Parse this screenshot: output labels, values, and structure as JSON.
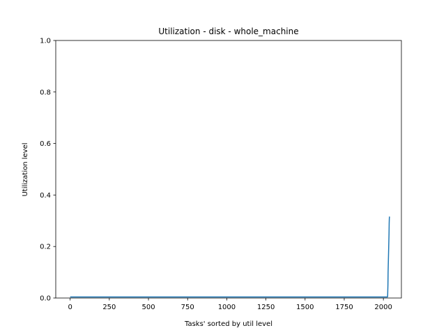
{
  "chart_data": {
    "type": "line",
    "title": "Utilization - disk - whole_machine",
    "xlabel": "Tasks' sorted by util level",
    "ylabel": "Utilization level",
    "xlim": [
      -92,
      2115
    ],
    "ylim": [
      0.0,
      1.0
    ],
    "x_ticks": [
      0,
      250,
      500,
      750,
      1000,
      1250,
      1500,
      1750,
      2000
    ],
    "y_ticks": [
      0.0,
      0.2,
      0.4,
      0.6,
      0.8,
      1.0
    ],
    "x_tick_labels": [
      "0",
      "250",
      "500",
      "750",
      "1000",
      "1250",
      "1500",
      "1750",
      "2000"
    ],
    "y_tick_labels": [
      "0.0",
      "0.2",
      "0.4",
      "0.6",
      "0.8",
      "1.0"
    ],
    "grid": false,
    "series": [
      {
        "color": "#1f77b4",
        "x": [
          0,
          500,
          1000,
          1500,
          2000,
          2025,
          2027,
          2029,
          2030,
          2032,
          2034,
          2036,
          2037,
          2038,
          2039,
          2040
        ],
        "y": [
          0.004,
          0.004,
          0.004,
          0.004,
          0.004,
          0.004,
          0.005,
          0.05,
          0.1,
          0.15,
          0.2,
          0.25,
          0.29,
          0.31,
          0.315,
          0.316
        ]
      }
    ]
  }
}
